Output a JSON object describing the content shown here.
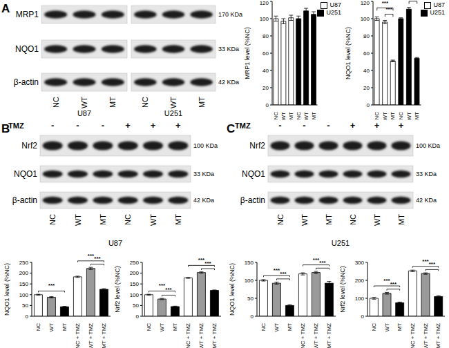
{
  "chart_data": [
    {
      "type": "bar",
      "y_label": "MRP1 level (%NC)",
      "categories": [
        "NC",
        "WT",
        "MT",
        "NC",
        "WT",
        "MT"
      ],
      "series": [
        {
          "name": "U87",
          "color": "#ffffff",
          "values": [
            100,
            97,
            101,
            null,
            null,
            null
          ],
          "errors": [
            3,
            3,
            3,
            null,
            null,
            null
          ]
        },
        {
          "name": "U251",
          "color": "#000000",
          "values": [
            null,
            null,
            null,
            100,
            109,
            105
          ],
          "errors": [
            null,
            null,
            null,
            3,
            3,
            3
          ]
        }
      ],
      "ylim": [
        0,
        120
      ],
      "yticks": [
        0,
        20,
        40,
        60,
        80,
        100,
        120
      ],
      "legend": "top-right",
      "annotations": []
    },
    {
      "type": "bar",
      "y_label": "NQO1 level (%NC)",
      "categories": [
        "NC",
        "WT",
        "MT",
        "NC",
        "WT",
        "MT"
      ],
      "series": [
        {
          "name": "U87",
          "color": "#ffffff",
          "values": [
            100,
            96,
            51,
            null,
            null,
            null
          ],
          "errors": [
            2,
            2,
            1,
            null,
            null,
            null
          ]
        },
        {
          "name": "U251",
          "color": "#000000",
          "values": [
            null,
            null,
            null,
            100,
            111,
            54
          ],
          "errors": [
            null,
            null,
            null,
            1,
            2,
            1
          ]
        }
      ],
      "ylim": [
        0,
        120
      ],
      "yticks": [
        0,
        20,
        40,
        60,
        80,
        100,
        120
      ],
      "legend": "top-right",
      "annotations": [
        {
          "from": 0,
          "to": 2,
          "text": "***"
        },
        {
          "from": 1,
          "to": 2,
          "text": "***"
        },
        {
          "from": 3,
          "to": 5,
          "text": "***"
        },
        {
          "from": 4,
          "to": 5,
          "text": "***"
        }
      ]
    },
    {
      "type": "bar",
      "y_label": "NQO1 level (%NC)",
      "categories": [
        "NC",
        "WT",
        "MT",
        "NC + TMZ",
        "WT + TMZ",
        "MT + TMZ"
      ],
      "values": [
        100,
        88,
        44,
        183,
        222,
        125
      ],
      "errors": [
        2,
        3,
        2,
        3,
        5,
        3
      ],
      "colors": [
        "#ffffff",
        "#9a9a9a",
        "#000000",
        "#ffffff",
        "#9a9a9a",
        "#000000"
      ],
      "ylim": [
        0,
        250
      ],
      "yticks": [
        0,
        50,
        100,
        150,
        200,
        250
      ],
      "annotations": [
        {
          "from": 0,
          "to": 2,
          "text": "***"
        },
        {
          "from": 3,
          "to": 5,
          "text": "***"
        },
        {
          "from": 4,
          "to": 5,
          "text": "***"
        }
      ]
    },
    {
      "type": "bar",
      "y_label": "Nrf2 level (%NC)",
      "categories": [
        "NC",
        "WT",
        "MT",
        "NC + TMZ",
        "WT + TMZ",
        "MT + TMZ"
      ],
      "values": [
        100,
        80,
        45,
        178,
        203,
        120
      ],
      "errors": [
        2,
        3,
        2,
        2,
        3,
        2
      ],
      "colors": [
        "#ffffff",
        "#9a9a9a",
        "#000000",
        "#ffffff",
        "#9a9a9a",
        "#000000"
      ],
      "ylim": [
        0,
        250
      ],
      "yticks": [
        0,
        50,
        100,
        150,
        200,
        250
      ],
      "annotations": [
        {
          "from": 0,
          "to": 2,
          "text": "***"
        },
        {
          "from": 1,
          "to": 2,
          "text": "***"
        },
        {
          "from": 3,
          "to": 5,
          "text": "***"
        },
        {
          "from": 4,
          "to": 5,
          "text": "***"
        }
      ]
    },
    {
      "type": "bar",
      "y_label": "NQO1 level (%NC)",
      "categories": [
        "NC",
        "WT",
        "MT",
        "NC + TMZ",
        "WT + TMZ",
        "MT + TMZ"
      ],
      "values": [
        100,
        92,
        30,
        118,
        122,
        92
      ],
      "errors": [
        2,
        3,
        2,
        3,
        3,
        5
      ],
      "colors": [
        "#ffffff",
        "#9a9a9a",
        "#000000",
        "#ffffff",
        "#9a9a9a",
        "#000000"
      ],
      "ylim": [
        0,
        150
      ],
      "yticks": [
        0,
        50,
        100,
        150
      ],
      "annotations": [
        {
          "from": 0,
          "to": 2,
          "text": "***"
        },
        {
          "from": 1,
          "to": 2,
          "text": "***"
        },
        {
          "from": 3,
          "to": 5,
          "text": "***"
        },
        {
          "from": 4,
          "to": 5,
          "text": "***"
        }
      ]
    },
    {
      "type": "bar",
      "y_label": "Nrf2 level (%NC)",
      "categories": [
        "NC",
        "WT",
        "MT",
        "NC + TMZ",
        "WT + TMZ",
        "MT + TMZ"
      ],
      "values": [
        100,
        128,
        75,
        253,
        238,
        110
      ],
      "errors": [
        5,
        5,
        4,
        4,
        4,
        4
      ],
      "colors": [
        "#ffffff",
        "#9a9a9a",
        "#000000",
        "#ffffff",
        "#9a9a9a",
        "#000000"
      ],
      "ylim": [
        0,
        300
      ],
      "yticks": [
        0,
        100,
        200,
        300
      ],
      "annotations": [
        {
          "from": 0,
          "to": 2,
          "text": "***"
        },
        {
          "from": 1,
          "to": 2,
          "text": "***"
        },
        {
          "from": 3,
          "to": 5,
          "text": "***"
        },
        {
          "from": 4,
          "to": 5,
          "text": "***"
        }
      ]
    }
  ],
  "blots": [
    {
      "panel": "A",
      "rows": [
        {
          "protein": "MRP1",
          "size": "170 KDa"
        },
        {
          "protein": "NQO1",
          "size": "33 KDa"
        },
        {
          "protein": "β-actin",
          "size": "42 KDa"
        }
      ],
      "groups": [
        {
          "cell": "U87",
          "lanes": [
            "NC",
            "WT",
            "MT"
          ]
        },
        {
          "cell": "U251",
          "lanes": [
            "NC",
            "WT",
            "MT"
          ]
        }
      ]
    },
    {
      "panel": "B",
      "treatment": "TMZ",
      "treatment_marks": [
        "-",
        "-",
        "-",
        "+",
        "+",
        "+"
      ],
      "rows": [
        {
          "protein": "Nrf2",
          "size": "100 KDa"
        },
        {
          "protein": "NQO1",
          "size": "33 KDa"
        },
        {
          "protein": "β-actin",
          "size": "42 KDa"
        }
      ],
      "groups": [
        {
          "cell": "U87",
          "lanes": [
            "NC",
            "WT",
            "MT",
            "NC",
            "WT",
            "MT"
          ]
        }
      ]
    },
    {
      "panel": "C",
      "treatment": "TMZ",
      "treatment_marks": [
        "-",
        "-",
        "-",
        "+",
        "+",
        "+"
      ],
      "rows": [
        {
          "protein": "Nrf2",
          "size": "100 KDa"
        },
        {
          "protein": "NQO1",
          "size": "33 KDa"
        },
        {
          "protein": "β-actin",
          "size": "42 KDa"
        }
      ],
      "groups": [
        {
          "cell": "U251",
          "lanes": [
            "NC",
            "WT",
            "MT",
            "NC",
            "WT",
            "MT"
          ]
        }
      ]
    }
  ]
}
